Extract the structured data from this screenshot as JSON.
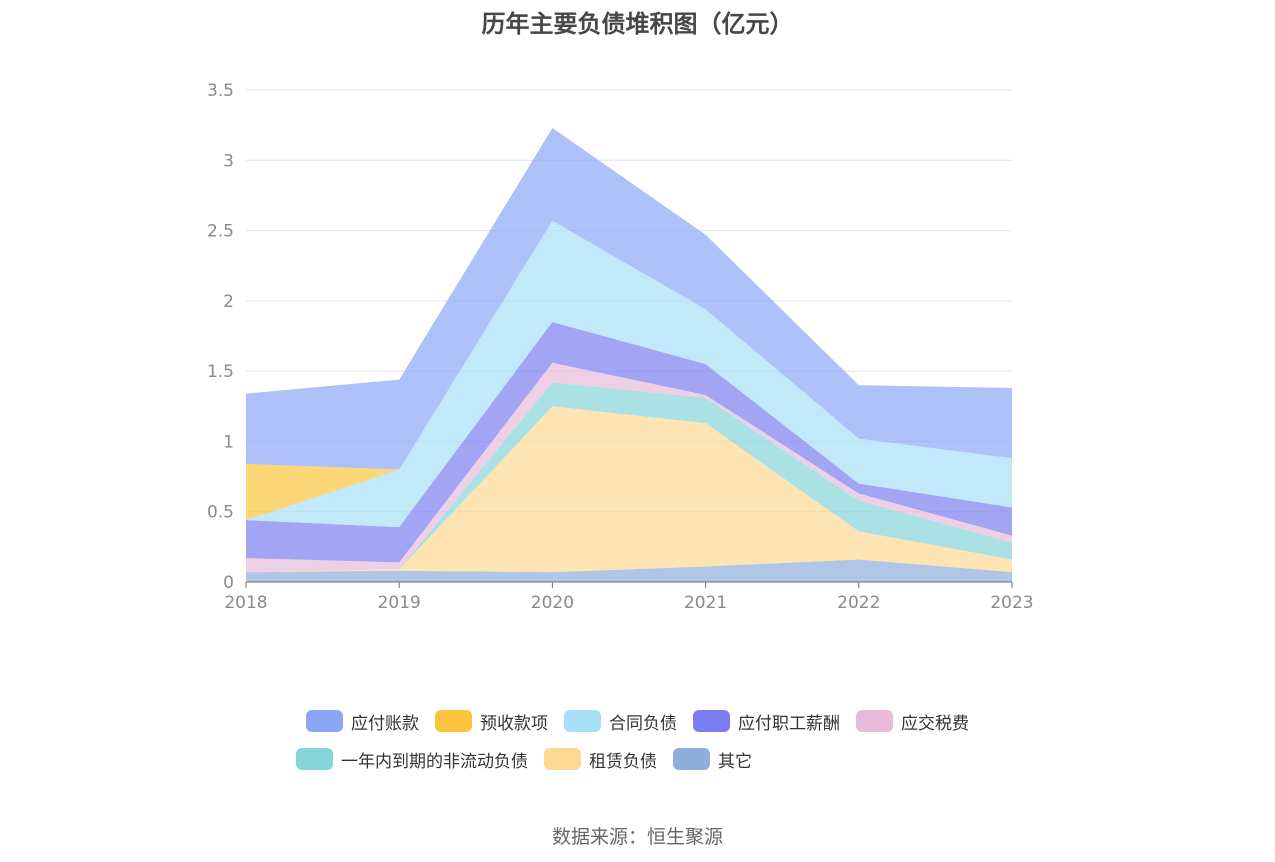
{
  "chart_data": {
    "type": "area",
    "stacked": true,
    "title": "历年主要负债堆积图（亿元）",
    "x": [
      "2018",
      "2019",
      "2020",
      "2021",
      "2022",
      "2023"
    ],
    "y_ticks": [
      "0",
      "0.5",
      "1",
      "1.5",
      "2",
      "2.5",
      "3",
      "3.5"
    ],
    "ylim": [
      0,
      3.5
    ],
    "grid": true,
    "legend_position": "bottom",
    "series_bottom_to_top": [
      {
        "name": "其它",
        "color": "#8faedb",
        "values": [
          0.07,
          0.08,
          0.07,
          0.11,
          0.16,
          0.07
        ]
      },
      {
        "name": "租赁负债",
        "color": "#fdd891",
        "values": [
          0.0,
          0.01,
          1.18,
          1.02,
          0.2,
          0.09
        ]
      },
      {
        "name": "一年内到期的非流动负债",
        "color": "#84d4d8",
        "values": [
          0.0,
          0.0,
          0.17,
          0.18,
          0.22,
          0.12
        ]
      },
      {
        "name": "应交税费",
        "color": "#e8bbda",
        "values": [
          0.1,
          0.05,
          0.14,
          0.02,
          0.05,
          0.05
        ]
      },
      {
        "name": "应付职工薪酬",
        "color": "#7b7ef0",
        "values": [
          0.27,
          0.25,
          0.29,
          0.22,
          0.07,
          0.2
        ]
      },
      {
        "name": "合同负债",
        "color": "#a7dff7",
        "values": [
          0.0,
          0.41,
          0.72,
          0.39,
          0.32,
          0.35
        ]
      },
      {
        "name": "预收款项",
        "color": "#fcc43e",
        "values": [
          0.4,
          0.0,
          0.0,
          0.0,
          0.0,
          0.0
        ]
      },
      {
        "name": "应付账款",
        "color": "#8ca6f7",
        "values": [
          0.5,
          0.64,
          0.66,
          0.53,
          0.38,
          0.5
        ]
      }
    ]
  },
  "legend": {
    "row1": [
      "应付账款",
      "预收款项",
      "合同负债",
      "应付职工薪酬",
      "应交税费"
    ],
    "row2": [
      "一年内到期的非流动负债",
      "租赁负债",
      "其它"
    ]
  },
  "colors": {
    "应付账款": "#8ca6f7",
    "预收款项": "#fcc43e",
    "合同负债": "#a7dff7",
    "应付职工薪酬": "#7b7ef0",
    "应交税费": "#e8bbda",
    "一年内到期的非流动负债": "#84d4d8",
    "租赁负债": "#fdd891",
    "其它": "#8faedb"
  },
  "source": "数据来源：恒生聚源"
}
